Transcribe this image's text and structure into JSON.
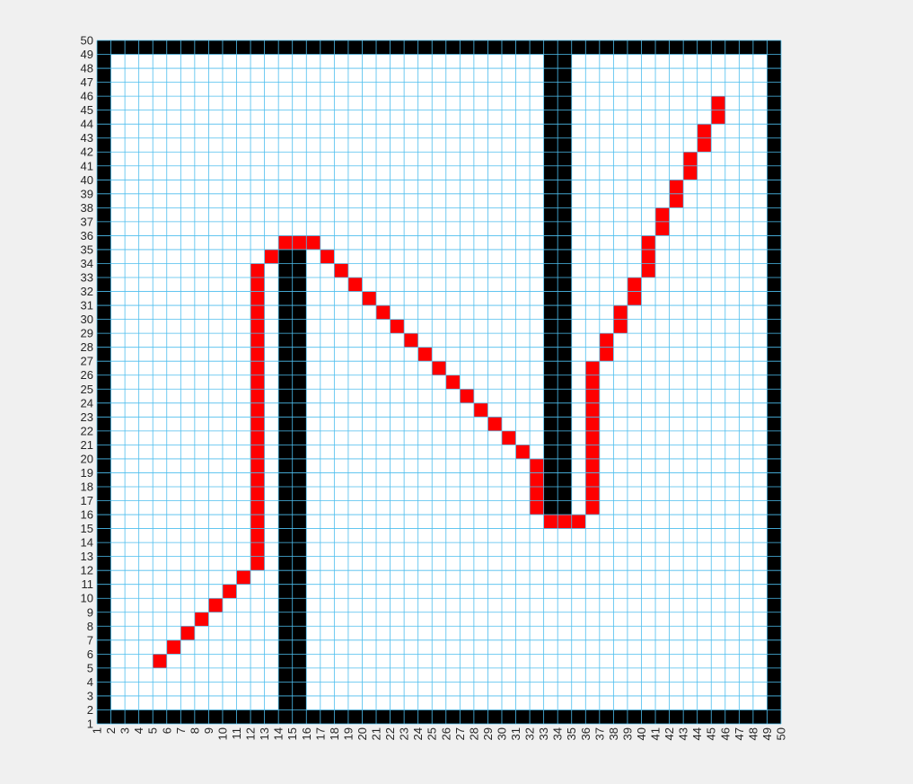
{
  "chart_data": {
    "type": "heatmap",
    "title": "",
    "xlabel": "",
    "ylabel": "",
    "grid": true,
    "legend": "none",
    "x_ticks": [
      "1",
      "2",
      "3",
      "4",
      "5",
      "6",
      "7",
      "8",
      "9",
      "10",
      "11",
      "12",
      "13",
      "14",
      "15",
      "16",
      "17",
      "18",
      "19",
      "20",
      "21",
      "22",
      "23",
      "24",
      "25",
      "26",
      "27",
      "28",
      "29",
      "30",
      "31",
      "32",
      "33",
      "34",
      "35",
      "36",
      "37",
      "38",
      "39",
      "40",
      "41",
      "42",
      "43",
      "44",
      "45",
      "46",
      "47",
      "48",
      "49",
      "50"
    ],
    "y_ticks": [
      "1",
      "2",
      "3",
      "4",
      "5",
      "6",
      "7",
      "8",
      "9",
      "10",
      "11",
      "12",
      "13",
      "14",
      "15",
      "16",
      "17",
      "18",
      "19",
      "20",
      "21",
      "22",
      "23",
      "24",
      "25",
      "26",
      "27",
      "28",
      "29",
      "30",
      "31",
      "32",
      "33",
      "34",
      "35",
      "36",
      "37",
      "38",
      "39",
      "40",
      "41",
      "42",
      "43",
      "44",
      "45",
      "46",
      "47",
      "48",
      "49",
      "50"
    ],
    "xlim": [
      1,
      50
    ],
    "ylim": [
      1,
      50
    ],
    "colors": {
      "background": "#f0f0f0",
      "free": "#ffffff",
      "obstacle": "#000000",
      "path": "#ff0000",
      "grid": "#4dbeee"
    },
    "obstacles": [
      {
        "x": [
          1,
          49
        ],
        "y": [
          1,
          1
        ]
      },
      {
        "x": [
          1,
          49
        ],
        "y": [
          49,
          49
        ]
      },
      {
        "x": [
          1,
          1
        ],
        "y": [
          1,
          49
        ]
      },
      {
        "x": [
          49,
          49
        ],
        "y": [
          1,
          49
        ]
      },
      {
        "x": [
          14,
          15
        ],
        "y": [
          2,
          34
        ]
      },
      {
        "x": [
          33,
          34
        ],
        "y": [
          15,
          48
        ]
      }
    ],
    "path": [
      [
        5,
        5
      ],
      [
        6,
        6
      ],
      [
        7,
        7
      ],
      [
        8,
        8
      ],
      [
        9,
        9
      ],
      [
        10,
        10
      ],
      [
        11,
        11
      ],
      [
        12,
        12
      ],
      [
        12,
        13
      ],
      [
        12,
        14
      ],
      [
        12,
        15
      ],
      [
        12,
        16
      ],
      [
        12,
        17
      ],
      [
        12,
        18
      ],
      [
        12,
        19
      ],
      [
        12,
        20
      ],
      [
        12,
        21
      ],
      [
        12,
        22
      ],
      [
        12,
        23
      ],
      [
        12,
        24
      ],
      [
        12,
        25
      ],
      [
        12,
        26
      ],
      [
        12,
        27
      ],
      [
        12,
        28
      ],
      [
        12,
        29
      ],
      [
        12,
        30
      ],
      [
        12,
        31
      ],
      [
        12,
        32
      ],
      [
        12,
        33
      ],
      [
        13,
        34
      ],
      [
        14,
        35
      ],
      [
        15,
        35
      ],
      [
        16,
        35
      ],
      [
        17,
        34
      ],
      [
        18,
        33
      ],
      [
        19,
        32
      ],
      [
        20,
        31
      ],
      [
        21,
        30
      ],
      [
        22,
        29
      ],
      [
        23,
        28
      ],
      [
        24,
        27
      ],
      [
        25,
        26
      ],
      [
        26,
        25
      ],
      [
        27,
        24
      ],
      [
        28,
        23
      ],
      [
        29,
        22
      ],
      [
        30,
        21
      ],
      [
        31,
        20
      ],
      [
        32,
        19
      ],
      [
        32,
        18
      ],
      [
        32,
        17
      ],
      [
        32,
        16
      ],
      [
        33,
        15
      ],
      [
        34,
        15
      ],
      [
        35,
        15
      ],
      [
        36,
        16
      ],
      [
        36,
        17
      ],
      [
        36,
        18
      ],
      [
        36,
        19
      ],
      [
        36,
        20
      ],
      [
        36,
        21
      ],
      [
        36,
        22
      ],
      [
        36,
        23
      ],
      [
        36,
        24
      ],
      [
        36,
        25
      ],
      [
        36,
        26
      ],
      [
        37,
        27
      ],
      [
        37,
        28
      ],
      [
        38,
        29
      ],
      [
        38,
        30
      ],
      [
        39,
        31
      ],
      [
        39,
        32
      ],
      [
        40,
        33
      ],
      [
        40,
        34
      ],
      [
        40,
        35
      ],
      [
        41,
        36
      ],
      [
        41,
        37
      ],
      [
        42,
        38
      ],
      [
        42,
        39
      ],
      [
        43,
        40
      ],
      [
        43,
        41
      ],
      [
        44,
        42
      ],
      [
        44,
        43
      ],
      [
        45,
        44
      ],
      [
        45,
        45
      ]
    ]
  }
}
